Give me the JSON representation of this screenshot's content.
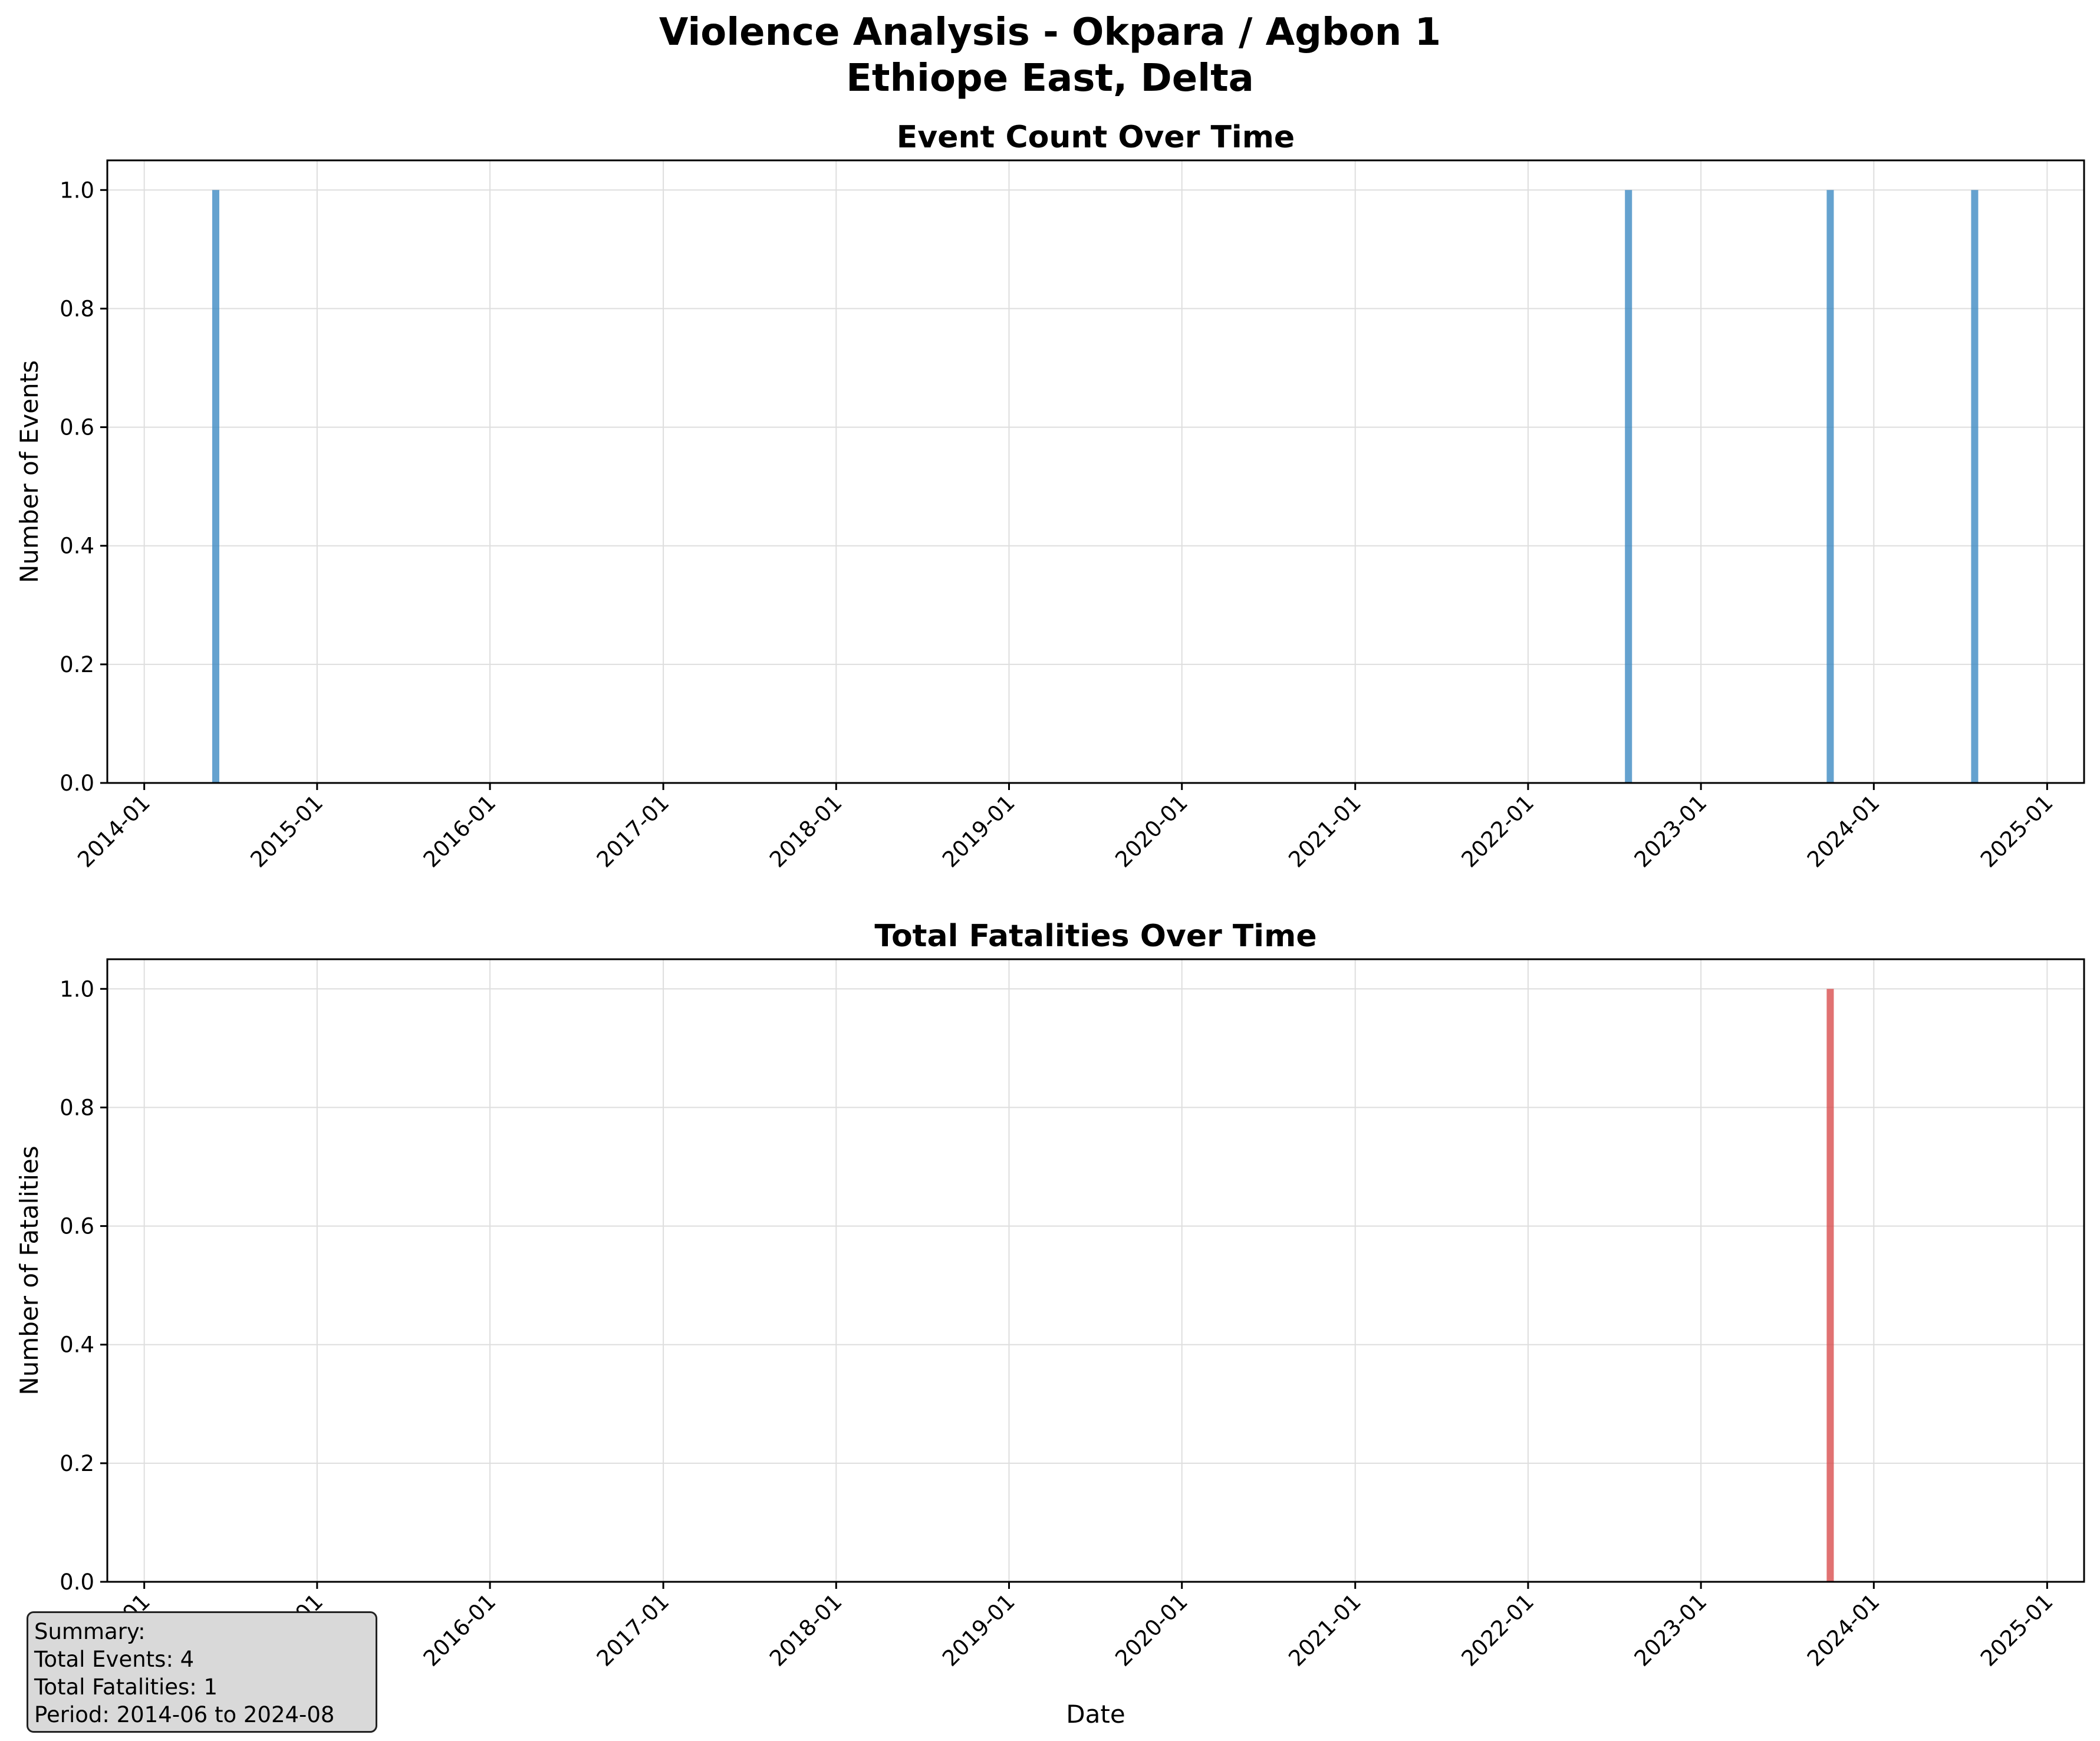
{
  "figure": {
    "title_line1": "Violence Analysis - Okpara / Agbon  1",
    "title_line2": "Ethiope East, Delta"
  },
  "chart_data": [
    {
      "type": "bar",
      "title": "Event Count Over Time",
      "ylabel": "Number of Events",
      "xlabel": "",
      "color": "#3a88c2",
      "x_type": "date",
      "xlim": [
        "2013-10-15",
        "2025-03-20"
      ],
      "ylim": [
        0,
        1.05
      ],
      "grid": true,
      "x_ticks": [
        "2014-01",
        "2015-01",
        "2016-01",
        "2017-01",
        "2018-01",
        "2019-01",
        "2020-01",
        "2021-01",
        "2022-01",
        "2023-01",
        "2024-01",
        "2025-01"
      ],
      "y_ticks": [
        "0.0",
        "0.2",
        "0.4",
        "0.6",
        "0.8",
        "1.0"
      ],
      "points": [
        {
          "date": "2014-06",
          "value": 1
        },
        {
          "date": "2022-08",
          "value": 1
        },
        {
          "date": "2023-10",
          "value": 1
        },
        {
          "date": "2024-08",
          "value": 1
        }
      ]
    },
    {
      "type": "bar",
      "title": "Total Fatalities Over Time",
      "ylabel": "Number of Fatalities",
      "xlabel": "Date",
      "color": "#d94a4a",
      "x_type": "date",
      "xlim": [
        "2013-10-15",
        "2025-03-20"
      ],
      "ylim": [
        0,
        1.05
      ],
      "grid": true,
      "x_ticks": [
        "2014-01",
        "2015-01",
        "2016-01",
        "2017-01",
        "2018-01",
        "2019-01",
        "2020-01",
        "2021-01",
        "2022-01",
        "2023-01",
        "2024-01",
        "2025-01"
      ],
      "y_ticks": [
        "0.0",
        "0.2",
        "0.4",
        "0.6",
        "0.8",
        "1.0"
      ],
      "points": [
        {
          "date": "2023-10",
          "value": 1
        }
      ]
    }
  ],
  "summary": {
    "heading": "Summary:",
    "total_events": "Total Events: 4",
    "total_fatalities": "Total Fatalities: 1",
    "period": "Period: 2014-06 to 2024-08"
  }
}
